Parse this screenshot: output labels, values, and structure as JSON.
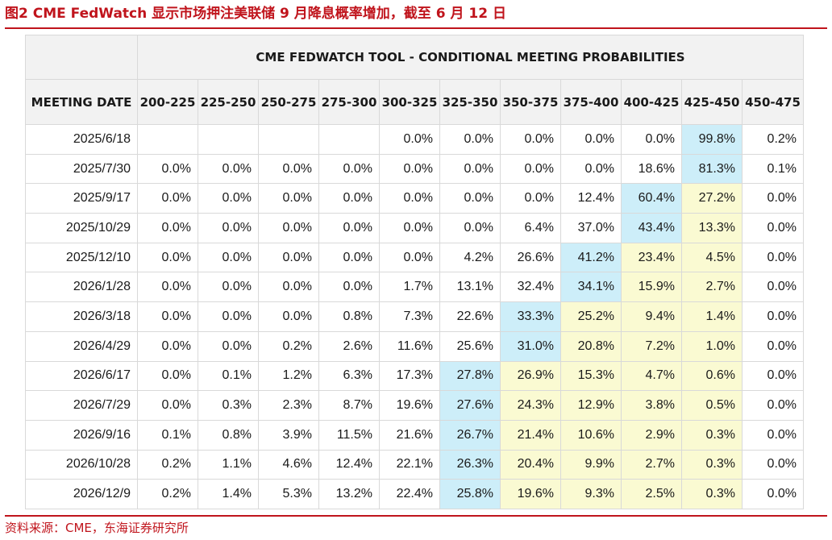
{
  "figure_title": "图2  CME FedWatch 显示市场押注美联储 9 月降息概率增加，截至 6 月 12 日",
  "source": "资料来源：CME，东海证券研究所",
  "colors": {
    "accent": "#c0141c",
    "header_bg": "#f2f2f2",
    "highlight_max": "#cdeef9",
    "highlight_second": "#fafad2"
  },
  "chart_data": {
    "type": "table",
    "title": "CME FEDWATCH TOOL - CONDITIONAL MEETING PROBABILITIES",
    "row_header": "MEETING DATE",
    "columns": [
      "200-225",
      "225-250",
      "250-275",
      "275-300",
      "300-325",
      "325-350",
      "350-375",
      "375-400",
      "400-425",
      "425-450",
      "450-475"
    ],
    "rows": [
      {
        "date": "2025/6/18",
        "values": [
          "",
          "",
          "",
          "",
          "0.0%",
          "0.0%",
          "0.0%",
          "0.0%",
          "0.0%",
          "99.8%",
          "0.2%"
        ],
        "highlight": {
          "9": "max"
        }
      },
      {
        "date": "2025/7/30",
        "values": [
          "0.0%",
          "0.0%",
          "0.0%",
          "0.0%",
          "0.0%",
          "0.0%",
          "0.0%",
          "0.0%",
          "18.6%",
          "81.3%",
          "0.1%"
        ],
        "highlight": {
          "9": "max"
        }
      },
      {
        "date": "2025/9/17",
        "values": [
          "0.0%",
          "0.0%",
          "0.0%",
          "0.0%",
          "0.0%",
          "0.0%",
          "0.0%",
          "12.4%",
          "60.4%",
          "27.2%",
          "0.0%"
        ],
        "highlight": {
          "8": "max",
          "9": "second"
        }
      },
      {
        "date": "2025/10/29",
        "values": [
          "0.0%",
          "0.0%",
          "0.0%",
          "0.0%",
          "0.0%",
          "0.0%",
          "6.4%",
          "37.0%",
          "43.4%",
          "13.3%",
          "0.0%"
        ],
        "highlight": {
          "8": "max",
          "9": "second"
        }
      },
      {
        "date": "2025/12/10",
        "values": [
          "0.0%",
          "0.0%",
          "0.0%",
          "0.0%",
          "0.0%",
          "4.2%",
          "26.6%",
          "41.2%",
          "23.4%",
          "4.5%",
          "0.0%"
        ],
        "highlight": {
          "7": "max",
          "8": "second",
          "9": "second"
        }
      },
      {
        "date": "2026/1/28",
        "values": [
          "0.0%",
          "0.0%",
          "0.0%",
          "0.0%",
          "1.7%",
          "13.1%",
          "32.4%",
          "34.1%",
          "15.9%",
          "2.7%",
          "0.0%"
        ],
        "highlight": {
          "7": "max",
          "8": "second",
          "9": "second"
        }
      },
      {
        "date": "2026/3/18",
        "values": [
          "0.0%",
          "0.0%",
          "0.0%",
          "0.8%",
          "7.3%",
          "22.6%",
          "33.3%",
          "25.2%",
          "9.4%",
          "1.4%",
          "0.0%"
        ],
        "highlight": {
          "6": "max",
          "7": "second",
          "8": "second",
          "9": "second"
        }
      },
      {
        "date": "2026/4/29",
        "values": [
          "0.0%",
          "0.0%",
          "0.2%",
          "2.6%",
          "11.6%",
          "25.6%",
          "31.0%",
          "20.8%",
          "7.2%",
          "1.0%",
          "0.0%"
        ],
        "highlight": {
          "6": "max",
          "7": "second",
          "8": "second",
          "9": "second"
        }
      },
      {
        "date": "2026/6/17",
        "values": [
          "0.0%",
          "0.1%",
          "1.2%",
          "6.3%",
          "17.3%",
          "27.8%",
          "26.9%",
          "15.3%",
          "4.7%",
          "0.6%",
          "0.0%"
        ],
        "highlight": {
          "5": "max",
          "6": "second",
          "7": "second",
          "8": "second",
          "9": "second"
        }
      },
      {
        "date": "2026/7/29",
        "values": [
          "0.0%",
          "0.3%",
          "2.3%",
          "8.7%",
          "19.6%",
          "27.6%",
          "24.3%",
          "12.9%",
          "3.8%",
          "0.5%",
          "0.0%"
        ],
        "highlight": {
          "5": "max",
          "6": "second",
          "7": "second",
          "8": "second",
          "9": "second"
        }
      },
      {
        "date": "2026/9/16",
        "values": [
          "0.1%",
          "0.8%",
          "3.9%",
          "11.5%",
          "21.6%",
          "26.7%",
          "21.4%",
          "10.6%",
          "2.9%",
          "0.3%",
          "0.0%"
        ],
        "highlight": {
          "5": "max",
          "6": "second",
          "7": "second",
          "8": "second",
          "9": "second"
        }
      },
      {
        "date": "2026/10/28",
        "values": [
          "0.2%",
          "1.1%",
          "4.6%",
          "12.4%",
          "22.1%",
          "26.3%",
          "20.4%",
          "9.9%",
          "2.7%",
          "0.3%",
          "0.0%"
        ],
        "highlight": {
          "5": "max",
          "6": "second",
          "7": "second",
          "8": "second",
          "9": "second"
        }
      },
      {
        "date": "2026/12/9",
        "values": [
          "0.2%",
          "1.4%",
          "5.3%",
          "13.2%",
          "22.4%",
          "25.8%",
          "19.6%",
          "9.3%",
          "2.5%",
          "0.3%",
          "0.0%"
        ],
        "highlight": {
          "5": "max",
          "6": "second",
          "7": "second",
          "8": "second",
          "9": "second"
        }
      }
    ]
  }
}
